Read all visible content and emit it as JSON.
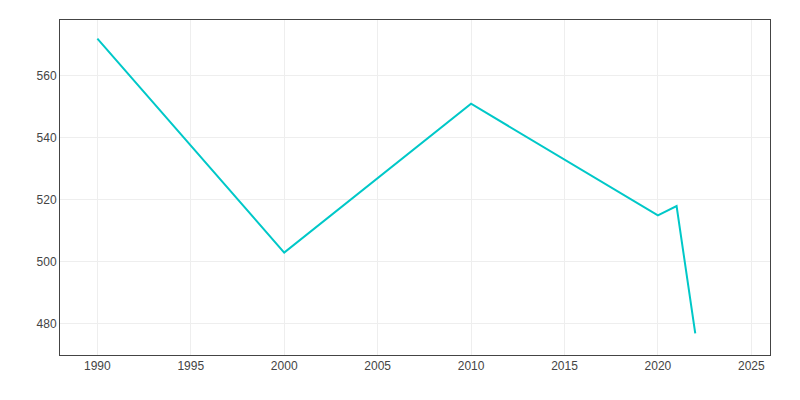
{
  "chart_data": {
    "type": "line",
    "x": [
      1990,
      2000,
      2010,
      2020,
      2021,
      2022
    ],
    "values": [
      572,
      503,
      551,
      515,
      518,
      477
    ],
    "color": "#00C8C8",
    "xlim": [
      1988,
      2026
    ],
    "ylim": [
      470,
      578
    ],
    "xticks": [
      1990,
      1995,
      2000,
      2005,
      2010,
      2015,
      2020,
      2025
    ],
    "yticks": [
      480,
      500,
      520,
      540,
      560
    ],
    "grid": true
  }
}
